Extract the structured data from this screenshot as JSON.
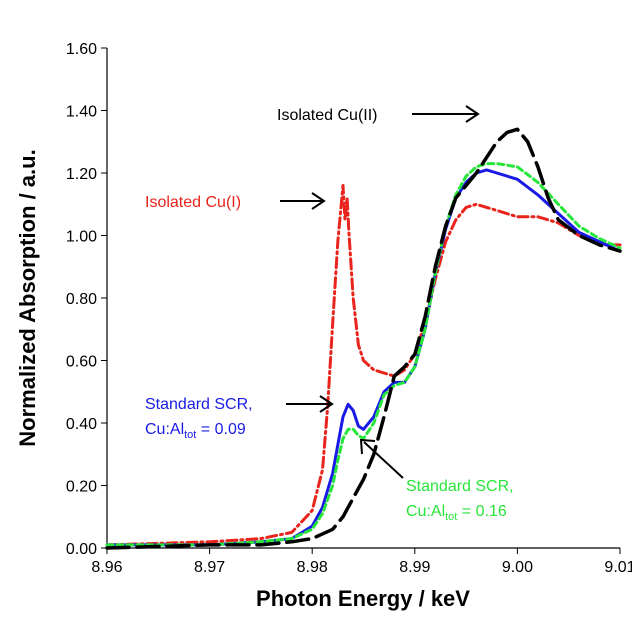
{
  "chart_data": {
    "type": "line",
    "title": "",
    "xlabel": "Photon Energy / keV",
    "ylabel": "Normalized Absorption / a.u.",
    "xlim": [
      8.96,
      9.01
    ],
    "ylim": [
      0.0,
      1.6
    ],
    "xticks": [
      "8.96",
      "8.97",
      "8.98",
      "8.99",
      "9.00",
      "9.01"
    ],
    "yticks": [
      "0.00",
      "0.20",
      "0.40",
      "0.60",
      "0.80",
      "1.00",
      "1.20",
      "1.40",
      "1.60"
    ],
    "grid": false,
    "series": [
      {
        "name": "Isolated Cu(I)",
        "color": "#e8241c",
        "style": "dash-dot",
        "x": [
          8.96,
          8.97,
          8.975,
          8.978,
          8.98,
          8.981,
          8.9815,
          8.982,
          8.9825,
          8.983,
          8.9832,
          8.9834,
          8.9836,
          8.984,
          8.9845,
          8.985,
          8.986,
          8.987,
          8.988,
          8.989,
          8.99,
          8.991,
          8.992,
          8.993,
          8.994,
          8.995,
          8.996,
          8.998,
          9.0,
          9.002,
          9.004,
          9.006,
          9.008,
          9.01
        ],
        "y": [
          0.01,
          0.02,
          0.03,
          0.05,
          0.12,
          0.25,
          0.45,
          0.72,
          0.98,
          1.16,
          1.05,
          1.12,
          1.0,
          0.8,
          0.65,
          0.6,
          0.57,
          0.56,
          0.55,
          0.57,
          0.62,
          0.72,
          0.86,
          0.98,
          1.05,
          1.09,
          1.1,
          1.08,
          1.06,
          1.06,
          1.04,
          1.0,
          0.97,
          0.97
        ]
      },
      {
        "name": "Standard SCR, Cu:Altot = 0.09",
        "color": "#1a1ae6",
        "style": "solid",
        "x": [
          8.96,
          8.97,
          8.975,
          8.978,
          8.98,
          8.981,
          8.982,
          8.9825,
          8.983,
          8.9835,
          8.984,
          8.9845,
          8.985,
          8.986,
          8.987,
          8.988,
          8.989,
          8.99,
          8.991,
          8.992,
          8.993,
          8.994,
          8.995,
          8.996,
          8.997,
          8.998,
          9.0,
          9.002,
          9.004,
          9.006,
          9.008,
          9.01
        ],
        "y": [
          0.01,
          0.01,
          0.02,
          0.03,
          0.07,
          0.13,
          0.24,
          0.33,
          0.42,
          0.46,
          0.44,
          0.39,
          0.38,
          0.42,
          0.5,
          0.53,
          0.53,
          0.58,
          0.7,
          0.88,
          1.02,
          1.12,
          1.17,
          1.2,
          1.21,
          1.2,
          1.18,
          1.13,
          1.07,
          1.01,
          0.98,
          0.95
        ]
      },
      {
        "name": "Standard SCR, Cu:Altot = 0.16",
        "color": "#27e63a",
        "style": "dashed",
        "x": [
          8.96,
          8.97,
          8.975,
          8.978,
          8.98,
          8.981,
          8.982,
          8.9825,
          8.983,
          8.9835,
          8.984,
          8.9845,
          8.985,
          8.986,
          8.987,
          8.988,
          8.989,
          8.99,
          8.991,
          8.992,
          8.993,
          8.994,
          8.995,
          8.996,
          8.997,
          8.998,
          9.0,
          9.002,
          9.004,
          9.006,
          9.008,
          9.01
        ],
        "y": [
          0.01,
          0.01,
          0.02,
          0.03,
          0.06,
          0.11,
          0.2,
          0.28,
          0.35,
          0.38,
          0.38,
          0.36,
          0.35,
          0.4,
          0.49,
          0.52,
          0.53,
          0.58,
          0.7,
          0.88,
          1.03,
          1.13,
          1.19,
          1.22,
          1.23,
          1.23,
          1.22,
          1.17,
          1.1,
          1.03,
          0.99,
          0.96
        ]
      },
      {
        "name": "Isolated Cu(II)",
        "color": "#000000",
        "style": "long-dash",
        "x": [
          8.96,
          8.97,
          8.975,
          8.978,
          8.98,
          8.982,
          8.983,
          8.984,
          8.985,
          8.986,
          8.987,
          8.988,
          8.989,
          8.99,
          8.991,
          8.992,
          8.993,
          8.994,
          8.995,
          8.996,
          8.997,
          8.998,
          8.999,
          9.0,
          9.001,
          9.002,
          9.003,
          9.004,
          9.006,
          9.008,
          9.01
        ],
        "y": [
          0.0,
          0.01,
          0.01,
          0.02,
          0.03,
          0.06,
          0.1,
          0.16,
          0.22,
          0.3,
          0.42,
          0.55,
          0.58,
          0.62,
          0.74,
          0.9,
          1.03,
          1.12,
          1.16,
          1.2,
          1.25,
          1.3,
          1.33,
          1.34,
          1.3,
          1.22,
          1.12,
          1.05,
          1.0,
          0.97,
          0.95
        ]
      }
    ],
    "annotations": [
      {
        "id": "cu2",
        "text": "Isolated Cu(II)",
        "color": "#000000"
      },
      {
        "id": "cu1",
        "text": "Isolated Cu(I)",
        "color": "#e8241c"
      },
      {
        "id": "scr09",
        "line1": "Standard SCR,",
        "line2_pre": "Cu:Al",
        "line2_sub": "tot",
        "line2_post": " = 0.09",
        "color": "#1a1ae6"
      },
      {
        "id": "scr16",
        "line1": "Standard SCR,",
        "line2_pre": "Cu:Al",
        "line2_sub": "tot",
        "line2_post": " = 0.16",
        "color": "#27e63a"
      }
    ]
  }
}
